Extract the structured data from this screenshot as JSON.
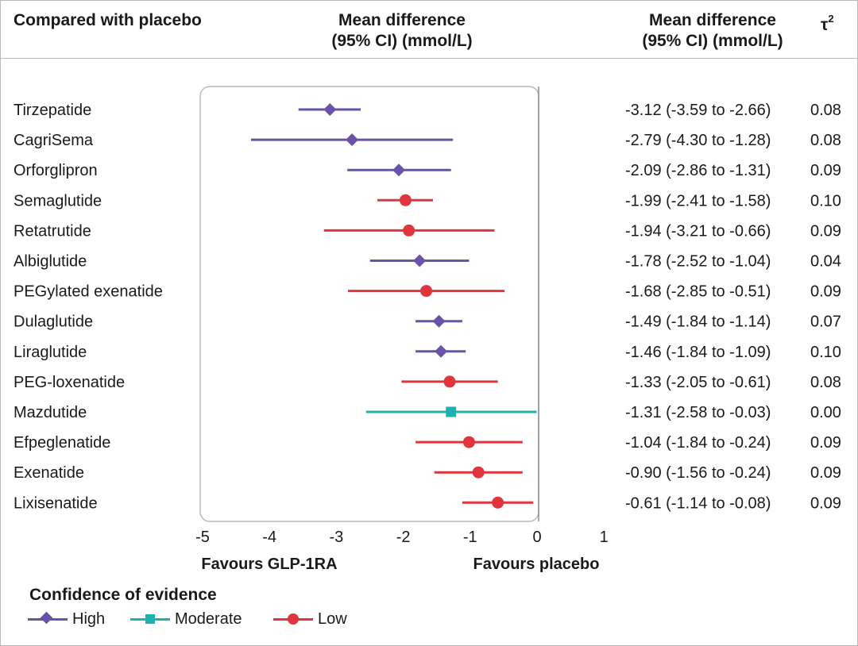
{
  "headers": {
    "left": "Compared with placebo",
    "mid_line1": "Mean difference",
    "mid_line2": "(95% CI) (mmol/L)",
    "right_line1": "Mean difference",
    "right_line2": "(95% CI) (mmol/L)",
    "tau": "τ",
    "tau_sup": "2"
  },
  "chart_data": {
    "type": "forest",
    "xlim": [
      -5,
      1
    ],
    "xticks": [
      "-5",
      "-4",
      "-3",
      "-2",
      "-1",
      "0",
      "1"
    ],
    "xtick_values": [
      -5,
      -4,
      -3,
      -2,
      -1,
      0,
      1
    ],
    "reference_line": 0,
    "favours_left": "Favours GLP-1RA",
    "favours_right": "Favours placebo",
    "rows": [
      {
        "name": "Tirzepatide",
        "mean": -3.12,
        "lo": -3.59,
        "hi": -2.66,
        "ci_text": "-3.12 (-3.59 to -2.66)",
        "tau2": "0.08",
        "evidence": "high"
      },
      {
        "name": "CagriSema",
        "mean": -2.79,
        "lo": -4.3,
        "hi": -1.28,
        "ci_text": "-2.79 (-4.30 to -1.28)",
        "tau2": "0.08",
        "evidence": "high"
      },
      {
        "name": "Orforglipron",
        "mean": -2.09,
        "lo": -2.86,
        "hi": -1.31,
        "ci_text": "-2.09 (-2.86 to -1.31)",
        "tau2": "0.09",
        "evidence": "high"
      },
      {
        "name": "Semaglutide",
        "mean": -1.99,
        "lo": -2.41,
        "hi": -1.58,
        "ci_text": "-1.99 (-2.41 to -1.58)",
        "tau2": "0.10",
        "evidence": "low"
      },
      {
        "name": "Retatrutide",
        "mean": -1.94,
        "lo": -3.21,
        "hi": -0.66,
        "ci_text": "-1.94 (-3.21 to -0.66)",
        "tau2": "0.09",
        "evidence": "low"
      },
      {
        "name": "Albiglutide",
        "mean": -1.78,
        "lo": -2.52,
        "hi": -1.04,
        "ci_text": "-1.78 (-2.52 to -1.04)",
        "tau2": "0.04",
        "evidence": "high"
      },
      {
        "name": "PEGylated exenatide",
        "mean": -1.68,
        "lo": -2.85,
        "hi": -0.51,
        "ci_text": "-1.68 (-2.85 to -0.51)",
        "tau2": "0.09",
        "evidence": "low"
      },
      {
        "name": "Dulaglutide",
        "mean": -1.49,
        "lo": -1.84,
        "hi": -1.14,
        "ci_text": "-1.49 (-1.84 to -1.14)",
        "tau2": "0.07",
        "evidence": "high"
      },
      {
        "name": "Liraglutide",
        "mean": -1.46,
        "lo": -1.84,
        "hi": -1.09,
        "ci_text": "-1.46 (-1.84 to -1.09)",
        "tau2": "0.10",
        "evidence": "high"
      },
      {
        "name": "PEG-loxenatide",
        "mean": -1.33,
        "lo": -2.05,
        "hi": -0.61,
        "ci_text": "-1.33 (-2.05 to -0.61)",
        "tau2": "0.08",
        "evidence": "low"
      },
      {
        "name": "Mazdutide",
        "mean": -1.31,
        "lo": -2.58,
        "hi": -0.03,
        "ci_text": "-1.31 (-2.58 to -0.03)",
        "tau2": "0.00",
        "evidence": "moderate"
      },
      {
        "name": "Efpeglenatide",
        "mean": -1.04,
        "lo": -1.84,
        "hi": -0.24,
        "ci_text": "-1.04 (-1.84 to -0.24)",
        "tau2": "0.09",
        "evidence": "low"
      },
      {
        "name": "Exenatide",
        "mean": -0.9,
        "lo": -1.56,
        "hi": -0.24,
        "ci_text": "-0.90 (-1.56 to -0.24)",
        "tau2": "0.09",
        "evidence": "low"
      },
      {
        "name": "Lixisenatide",
        "mean": -0.61,
        "lo": -1.14,
        "hi": -0.08,
        "ci_text": "-0.61 (-1.14 to -0.08)",
        "tau2": "0.09",
        "evidence": "low"
      }
    ]
  },
  "legend": {
    "title": "Confidence of evidence",
    "high": "High",
    "moderate": "Moderate",
    "low": "Low"
  },
  "colors": {
    "high": "#6a52a8",
    "moderate": "#1fb1b1",
    "low": "#e0353c",
    "frame": "#b9b9b9",
    "reference": "#8c8c8c"
  }
}
